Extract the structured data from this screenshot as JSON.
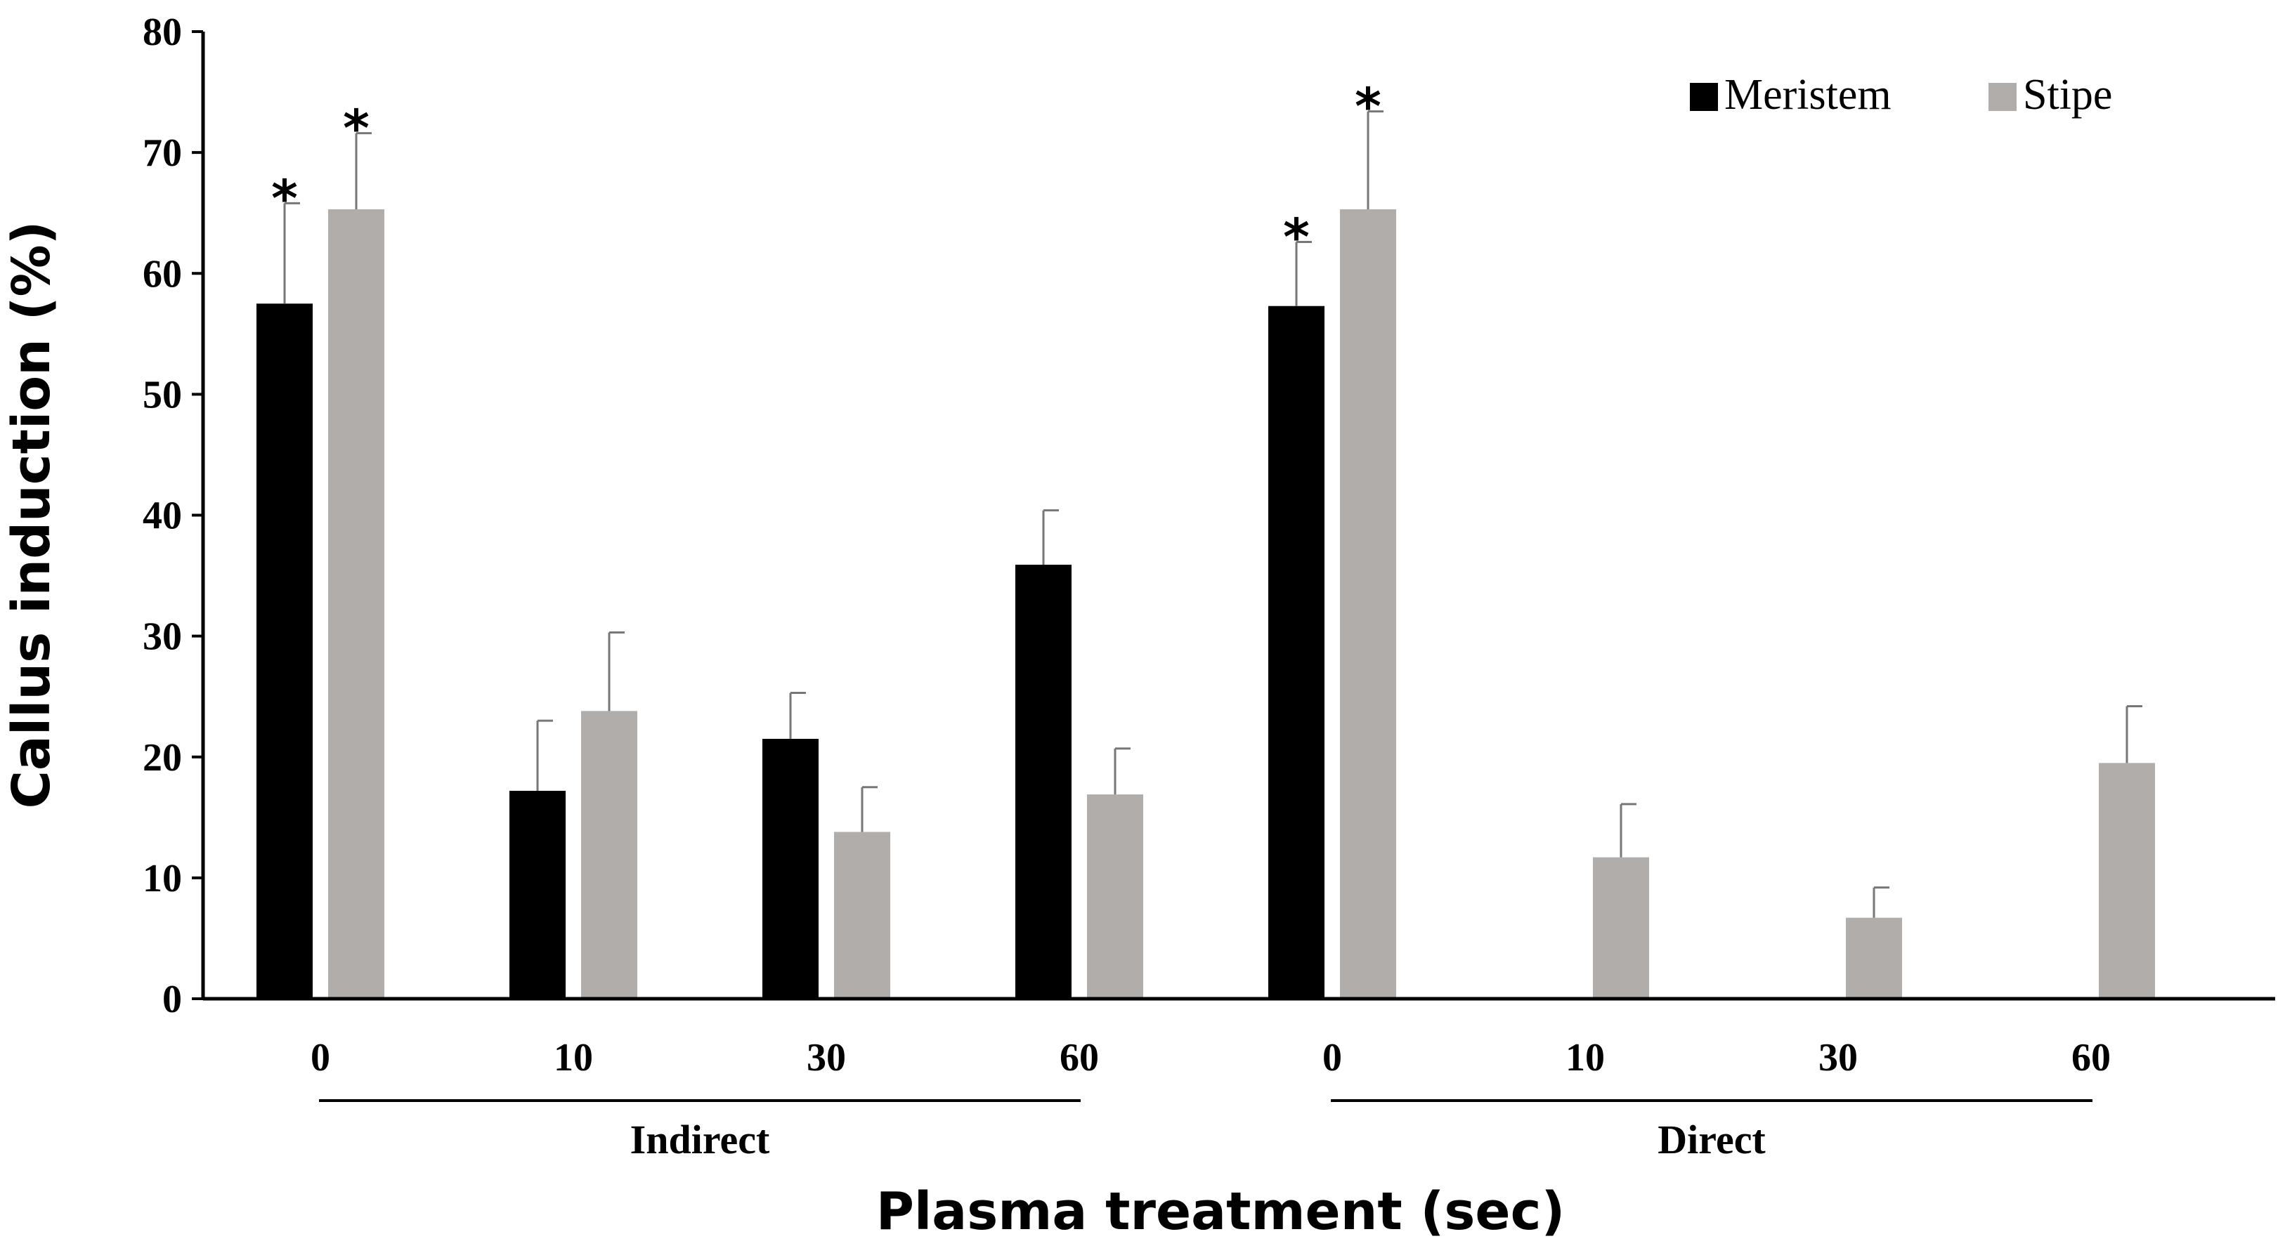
{
  "chart_data": {
    "type": "bar",
    "title": "",
    "xlabel": "Plasma treatment (sec)",
    "ylabel": "Callus induction (%)",
    "ylim": [
      0,
      80
    ],
    "yticks": [
      "0",
      "10",
      "20",
      "30",
      "40",
      "50",
      "60",
      "70",
      "80"
    ],
    "categories": [
      "0",
      "10",
      "30",
      "60",
      "0",
      "10",
      "30",
      "60"
    ],
    "groups": [
      {
        "label": "Indirect",
        "from": 0,
        "to": 3
      },
      {
        "label": "Direct",
        "from": 4,
        "to": 7
      }
    ],
    "legend_position": "top-right",
    "series": [
      {
        "name": "Meristem",
        "color": "#000000",
        "values": [
          57.5,
          17.2,
          21.5,
          35.9,
          57.3,
          0,
          0,
          0
        ],
        "errors": [
          8.3,
          5.8,
          3.8,
          4.5,
          5.3,
          0,
          0,
          0
        ],
        "significance": [
          "*",
          "",
          "",
          "",
          "*",
          "",
          "",
          ""
        ]
      },
      {
        "name": "Stipe",
        "color": "#B0ADAA",
        "values": [
          65.3,
          23.8,
          13.8,
          16.9,
          65.3,
          11.7,
          6.7,
          19.5
        ],
        "errors": [
          6.3,
          6.5,
          3.7,
          3.8,
          8.1,
          4.4,
          2.5,
          4.7
        ],
        "significance": [
          "*",
          "",
          "",
          "",
          "*",
          "",
          "",
          ""
        ]
      }
    ]
  }
}
